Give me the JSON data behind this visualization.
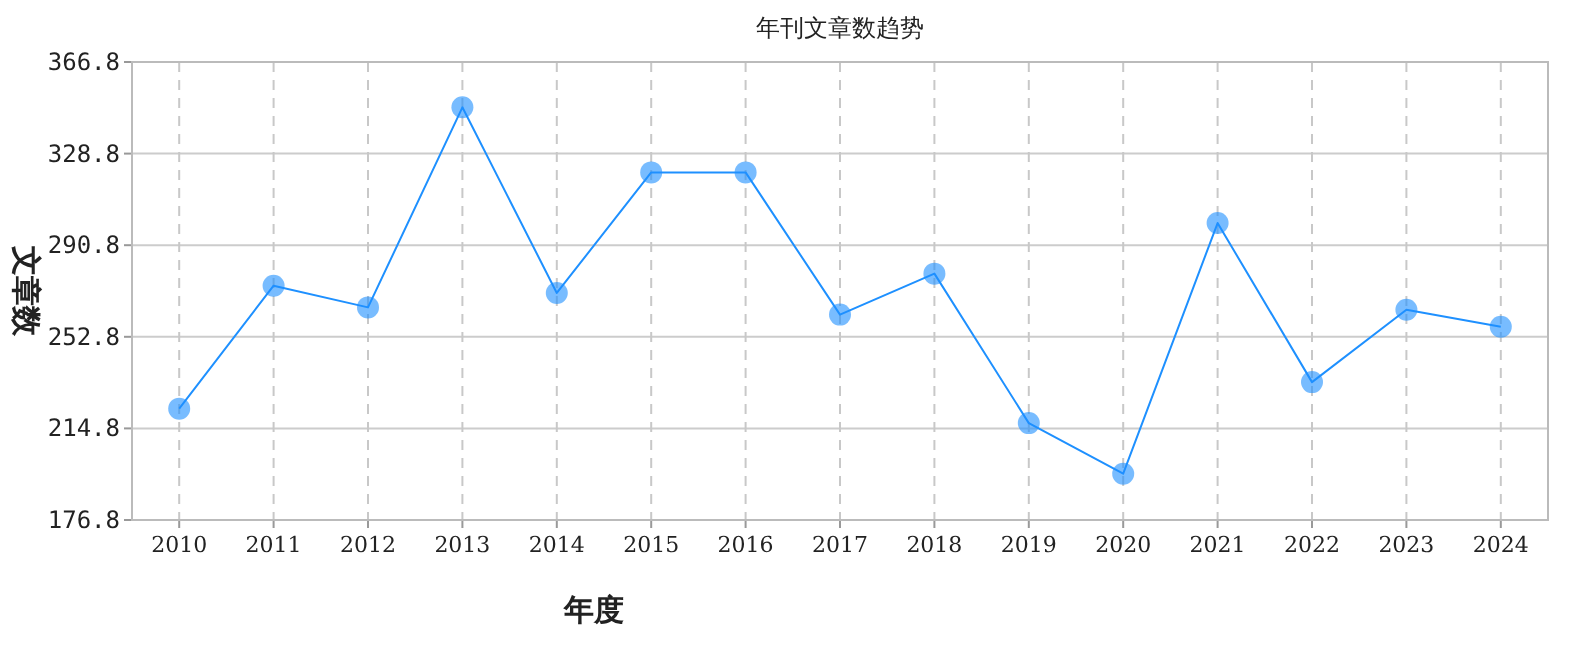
{
  "chart_data": {
    "type": "line",
    "title": "年刊文章数趋势",
    "xlabel": "年度",
    "ylabel": "文章数",
    "categories": [
      "2010",
      "2011",
      "2012",
      "2013",
      "2014",
      "2015",
      "2016",
      "2017",
      "2018",
      "2019",
      "2020",
      "2021",
      "2022",
      "2023",
      "2024"
    ],
    "series": [
      {
        "color": "#1e90ff",
        "values": [
          223,
          274,
          265,
          348,
          271,
          321,
          321,
          262,
          279,
          217,
          196,
          300,
          234,
          264,
          257
        ]
      }
    ],
    "ylim": [
      176.8,
      366.8
    ],
    "yticks": [
      176.8,
      214.8,
      252.8,
      290.8,
      328.8,
      366.8
    ],
    "grid": true,
    "marker": "circle",
    "line_style": "solid"
  }
}
